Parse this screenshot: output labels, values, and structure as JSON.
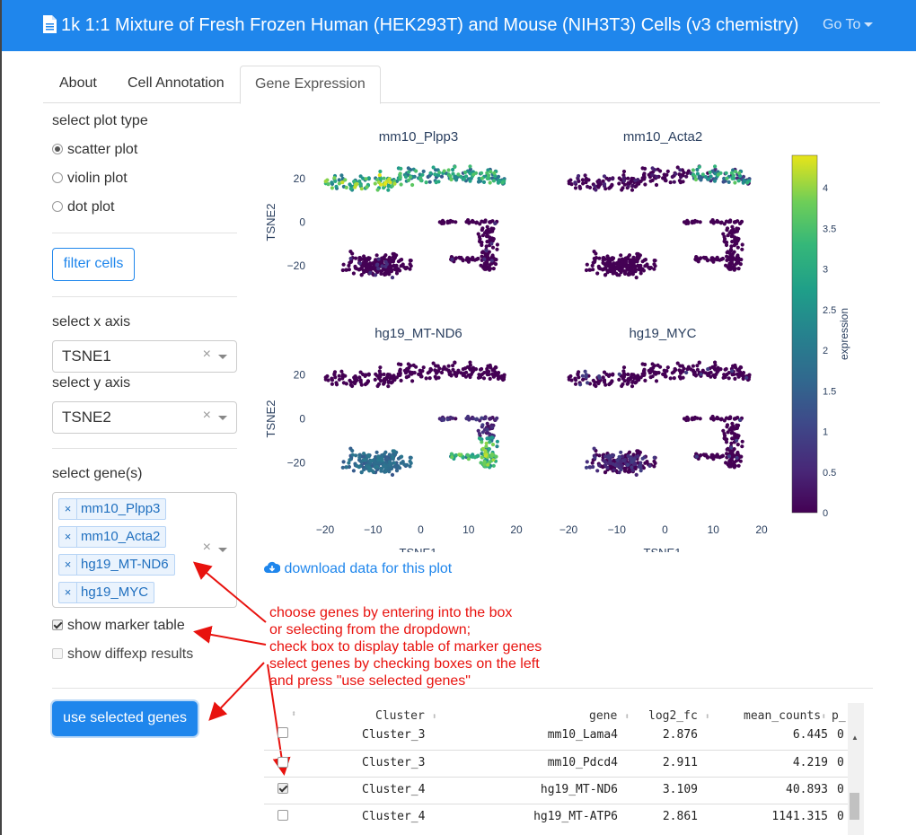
{
  "app": {
    "title": "1k 1:1 Mixture of Fresh Frozen Human (HEK293T) and Mouse (NIH3T3) Cells (v3 chemistry)",
    "goto_label": "Go To",
    "doc_icon": "document-icon"
  },
  "tabs": [
    {
      "label": "About"
    },
    {
      "label": "Cell Annotation"
    },
    {
      "label": "Gene Expression"
    }
  ],
  "sidebar": {
    "plot_type_label": "select plot type",
    "plot_types": [
      {
        "label": "scatter plot",
        "selected": true
      },
      {
        "label": "violin plot",
        "selected": false
      },
      {
        "label": "dot plot",
        "selected": false
      }
    ],
    "filter_button": "filter cells",
    "x_axis_label": "select x axis",
    "x_axis_value": "TSNE1",
    "y_axis_label": "select y axis",
    "y_axis_value": "TSNE2",
    "clear_glyph": "×",
    "genes_label": "select gene(s)",
    "genes": [
      "mm10_Plpp3",
      "mm10_Acta2",
      "hg19_MT-ND6",
      "hg19_MYC"
    ],
    "show_marker_label": "show marker table",
    "show_marker_checked": true,
    "show_diffexp_label": "show diffexp results",
    "show_diffexp_checked": false,
    "use_genes_button": "use selected genes"
  },
  "plot": {
    "download_label": "download data for this plot",
    "download_icon": "cloud-download-icon",
    "colorbar_label": "expression",
    "colorbar_ticks": [
      "4",
      "3.5",
      "3",
      "2.5",
      "2",
      "1.5",
      "1",
      "0.5",
      "0"
    ],
    "colorscale": "viridis",
    "xlabel": "TSNE1",
    "ylabel": "TSNE2",
    "x_ticks": [
      "−20",
      "−10",
      "0",
      "10",
      "20"
    ],
    "y_ticks": [
      "20",
      "0",
      "−20"
    ]
  },
  "chart_data": {
    "type": "scatter",
    "xlabel": "TSNE1",
    "ylabel": "TSNE2",
    "xlim": [
      -20,
      20
    ],
    "ylim": [
      -30,
      30
    ],
    "colorbar": {
      "label": "expression",
      "range": [
        0,
        4.4
      ],
      "colorscale": "viridis"
    },
    "panels": [
      {
        "title": "mm10_Plpp3",
        "high_expression_region": "top cluster (mouse cells)",
        "max_expression": 4.2
      },
      {
        "title": "mm10_Acta2",
        "high_expression_region": "upper-right of top cluster",
        "max_expression": 4.2
      },
      {
        "title": "hg19_MT-ND6",
        "high_expression_region": "bottom-right cluster (human cells)",
        "max_expression": 4.4
      },
      {
        "title": "hg19_MYC",
        "high_expression_region": "bottom-left cluster",
        "max_expression": 2.0
      }
    ]
  },
  "annotation": {
    "lines": [
      "choose genes by entering into the box",
      "or selecting from the dropdown;",
      "check box to display table of marker genes",
      "select genes by checking boxes on the left",
      "and press \"use selected genes\""
    ],
    "color": "#e8120e"
  },
  "table": {
    "columns": [
      "",
      "Cluster",
      "gene",
      "log2_fc",
      "mean_counts",
      "p_"
    ],
    "rows": [
      {
        "checked": false,
        "cluster": "Cluster_3",
        "gene": "mm10_Lama4",
        "log2_fc": "2.876",
        "mean_counts": "6.445",
        "p": "0"
      },
      {
        "checked": false,
        "cluster": "Cluster_3",
        "gene": "mm10_Pdcd4",
        "log2_fc": "2.911",
        "mean_counts": "4.219",
        "p": "0"
      },
      {
        "checked": true,
        "cluster": "Cluster_4",
        "gene": "hg19_MT-ND6",
        "log2_fc": "3.109",
        "mean_counts": "40.893",
        "p": "0"
      },
      {
        "checked": false,
        "cluster": "Cluster_4",
        "gene": "hg19_MT-ATP6",
        "log2_fc": "2.861",
        "mean_counts": "1141.315",
        "p": "0"
      }
    ]
  },
  "colors": {
    "brand": "#1f86ec",
    "annotation": "#e8120e"
  }
}
